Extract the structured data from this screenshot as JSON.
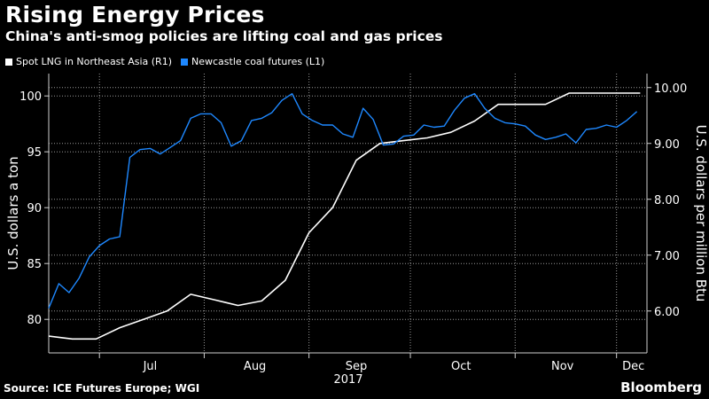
{
  "header": {
    "title": "Rising Energy Prices",
    "subtitle": "China's anti-smog policies are lifting coal and gas prices"
  },
  "footer": {
    "source": "Source: ICE Futures Europe; WGI",
    "brand": "Bloomberg"
  },
  "colors": {
    "background": "#000000",
    "lng": "#ffffff",
    "coal": "#1e88ff",
    "grid": "#9a9a9a"
  },
  "chart_data": {
    "type": "line",
    "title": "Rising Energy Prices",
    "subtitle": "China's anti-smog policies are lifting coal and gas prices",
    "xlabel": "2017",
    "x_ticks": [
      "Jul",
      "Aug",
      "Sep",
      "Oct",
      "Nov",
      "Dec"
    ],
    "x_range": [
      "2017-06-16",
      "2017-12-10"
    ],
    "y_left": {
      "label": "U.S. dollars a ton",
      "range": [
        77,
        102
      ],
      "ticks": [
        80,
        85,
        90,
        95,
        100
      ]
    },
    "y_right": {
      "label": "U.S. dollars per million Btu",
      "range": [
        5.25,
        10.25
      ],
      "ticks": [
        "6.00",
        "7.00",
        "8.00",
        "9.00",
        "10.00"
      ]
    },
    "grid": true,
    "legend_position": "top-left",
    "series": [
      {
        "name": "Spot LNG in Northeast Asia (R1)",
        "axis": "right",
        "color": "#ffffff",
        "x": [
          "2017-06-16",
          "2017-06-23",
          "2017-06-30",
          "2017-07-07",
          "2017-07-14",
          "2017-07-21",
          "2017-07-28",
          "2017-08-04",
          "2017-08-11",
          "2017-08-18",
          "2017-08-25",
          "2017-09-01",
          "2017-09-08",
          "2017-09-15",
          "2017-09-22",
          "2017-09-29",
          "2017-10-06",
          "2017-10-13",
          "2017-10-20",
          "2017-10-27",
          "2017-11-03",
          "2017-11-10",
          "2017-11-17",
          "2017-11-24",
          "2017-12-01",
          "2017-12-08"
        ],
        "values": [
          5.55,
          5.5,
          5.5,
          5.7,
          5.85,
          6.0,
          6.3,
          6.2,
          6.1,
          6.18,
          6.55,
          7.4,
          7.85,
          8.7,
          9.0,
          9.05,
          9.1,
          9.2,
          9.4,
          9.7,
          9.7,
          9.7,
          9.9,
          9.9,
          9.9,
          9.9
        ]
      },
      {
        "name": "Newcastle coal futures (L1)",
        "axis": "left",
        "color": "#1e88ff",
        "x": [
          "2017-06-16",
          "2017-06-19",
          "2017-06-22",
          "2017-06-25",
          "2017-06-28",
          "2017-07-01",
          "2017-07-04",
          "2017-07-07",
          "2017-07-10",
          "2017-07-13",
          "2017-07-16",
          "2017-07-19",
          "2017-07-22",
          "2017-07-25",
          "2017-07-28",
          "2017-07-31",
          "2017-08-03",
          "2017-08-06",
          "2017-08-09",
          "2017-08-12",
          "2017-08-15",
          "2017-08-18",
          "2017-08-21",
          "2017-08-24",
          "2017-08-27",
          "2017-08-30",
          "2017-09-02",
          "2017-09-05",
          "2017-09-08",
          "2017-09-11",
          "2017-09-14",
          "2017-09-17",
          "2017-09-20",
          "2017-09-23",
          "2017-09-26",
          "2017-09-29",
          "2017-10-02",
          "2017-10-05",
          "2017-10-08",
          "2017-10-11",
          "2017-10-14",
          "2017-10-17",
          "2017-10-20",
          "2017-10-23",
          "2017-10-26",
          "2017-10-29",
          "2017-11-01",
          "2017-11-04",
          "2017-11-07",
          "2017-11-10",
          "2017-11-13",
          "2017-11-16",
          "2017-11-19",
          "2017-11-22",
          "2017-11-25",
          "2017-11-28",
          "2017-12-01",
          "2017-12-04",
          "2017-12-07"
        ],
        "values": [
          81.0,
          83.2,
          82.4,
          83.7,
          85.6,
          86.6,
          87.2,
          87.4,
          94.5,
          95.2,
          95.3,
          94.8,
          95.4,
          96.0,
          98.0,
          98.4,
          98.4,
          97.6,
          95.5,
          96.0,
          97.8,
          98.0,
          98.5,
          99.6,
          100.2,
          98.4,
          97.8,
          97.4,
          97.4,
          96.6,
          96.3,
          98.9,
          97.9,
          95.6,
          95.7,
          96.4,
          96.5,
          97.4,
          97.2,
          97.3,
          98.7,
          99.8,
          100.2,
          98.9,
          98.0,
          97.6,
          97.5,
          97.3,
          96.5,
          96.1,
          96.3,
          96.6,
          95.8,
          97.0,
          97.1,
          97.4,
          97.2,
          97.8,
          98.6
        ]
      }
    ]
  }
}
